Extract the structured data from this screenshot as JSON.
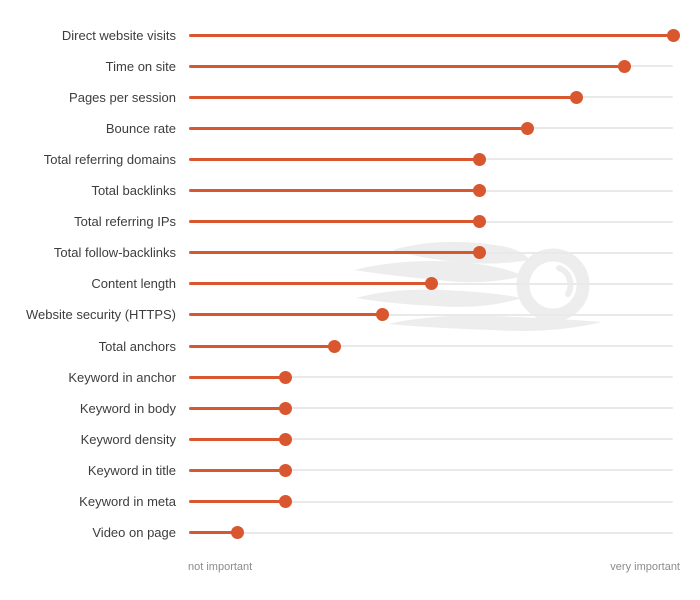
{
  "chart_data": {
    "type": "lollipop",
    "title": "",
    "categories": [
      "Direct website visits",
      "Time on site",
      "Pages per session",
      "Bounce rate",
      "Total referring domains",
      "Total backlinks",
      "Total referring IPs",
      "Total follow-backlinks",
      "Content length",
      "Website security (HTTPS)",
      "Total anchors",
      "Keyword in anchor",
      "Keyword in body",
      "Keyword density",
      "Keyword in title",
      "Keyword in meta",
      "Video on page"
    ],
    "values": [
      1.0,
      0.9,
      0.8,
      0.7,
      0.6,
      0.6,
      0.6,
      0.6,
      0.5,
      0.4,
      0.3,
      0.2,
      0.2,
      0.2,
      0.2,
      0.2,
      0.1
    ],
    "xlim": [
      0,
      1
    ],
    "x_axis": {
      "min_label": "not important",
      "max_label": "very important"
    },
    "legend": "none",
    "grid": "per-category horizontal track lines",
    "watermark": "semrush-logo",
    "colors": {
      "accent": "#d9572e",
      "track": "#e9e9e9",
      "category_label": "#3d3d3d",
      "axis_label": "#8c8c8c",
      "watermark": "#ededed",
      "background": "#ffffff"
    }
  }
}
